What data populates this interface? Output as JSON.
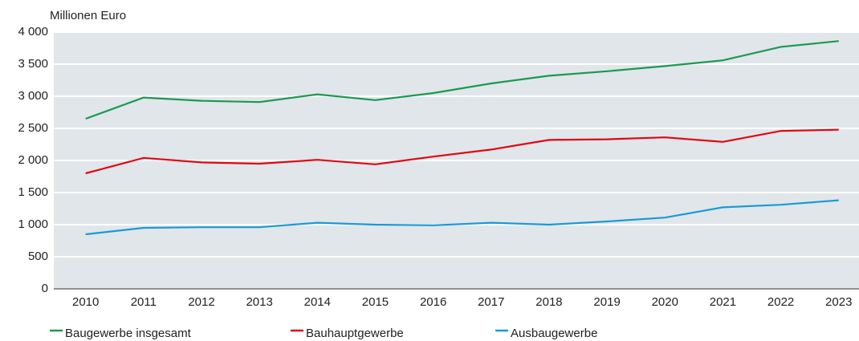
{
  "chart_data": {
    "type": "line",
    "y_label": "Millionen Euro",
    "x": [
      2010,
      2011,
      2012,
      2013,
      2014,
      2015,
      2016,
      2017,
      2018,
      2019,
      2020,
      2021,
      2022,
      2023
    ],
    "series": [
      {
        "name": "Baugewerbe insgesamt",
        "color": "#1a9a50",
        "values": [
          2650,
          2980,
          2930,
          2910,
          3030,
          2940,
          3050,
          3200,
          3320,
          3390,
          3470,
          3560,
          3770,
          3860
        ]
      },
      {
        "name": "Bauhauptgewerbe",
        "color": "#e30613",
        "values": [
          1800,
          2040,
          1970,
          1950,
          2010,
          1940,
          2060,
          2170,
          2320,
          2330,
          2360,
          2290,
          2460,
          2480
        ]
      },
      {
        "name": "Ausbaugewerbe",
        "color": "#1a9ad6",
        "values": [
          850,
          950,
          960,
          960,
          1030,
          1000,
          990,
          1030,
          1000,
          1050,
          1110,
          1270,
          1310,
          1380
        ]
      }
    ],
    "xlim": [
      2009.45,
      2023.35
    ],
    "ylim": [
      0,
      4000
    ],
    "yticks": [
      0,
      500,
      {
        "value": 1000,
        "label": "1 000"
      },
      {
        "value": 1500,
        "label": "1 500"
      },
      {
        "value": 2000,
        "label": "2 000"
      },
      {
        "value": 2500,
        "label": "2 500"
      },
      {
        "value": 3000,
        "label": "3 000"
      },
      {
        "value": 3500,
        "label": "3 500"
      },
      {
        "value": 4000,
        "label": "4 000"
      }
    ],
    "grid": true,
    "legend": "bottom"
  }
}
